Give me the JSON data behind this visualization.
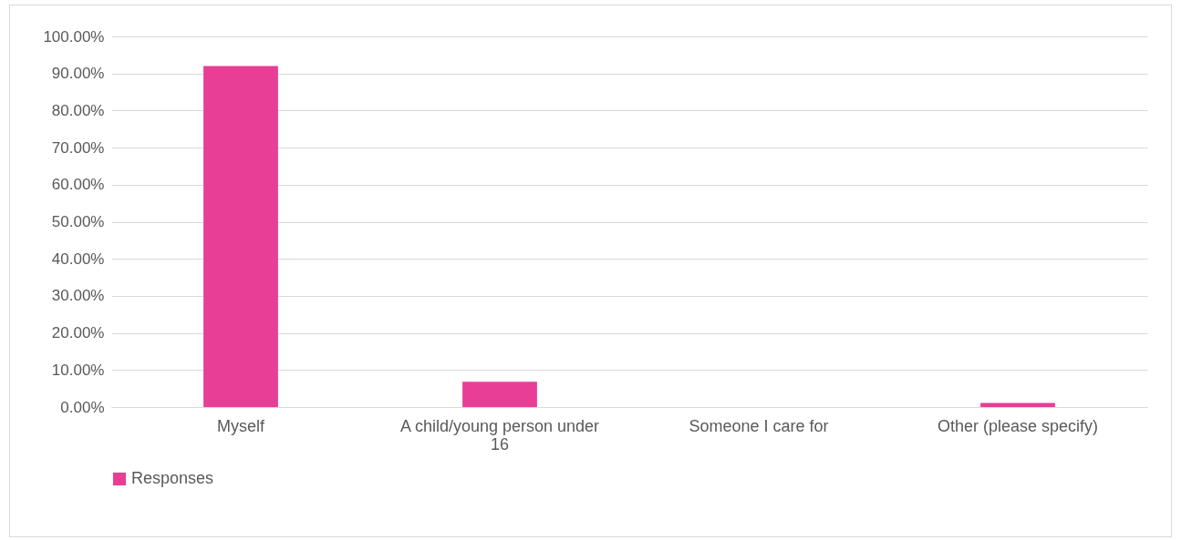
{
  "chart_data": {
    "type": "bar",
    "categories": [
      "Myself",
      "A child/young person under 16",
      "Someone I care for",
      "Other (please specify)"
    ],
    "series": [
      {
        "name": "Responses",
        "color": "#e83e96",
        "values": [
          92.0,
          6.8,
          0,
          1.1
        ]
      }
    ],
    "ylim": [
      0,
      100
    ],
    "yticks": [
      {
        "value": 0,
        "label": "0.00%"
      },
      {
        "value": 10,
        "label": "10.00%"
      },
      {
        "value": 20,
        "label": "20.00%"
      },
      {
        "value": 30,
        "label": "30.00%"
      },
      {
        "value": 40,
        "label": "40.00%"
      },
      {
        "value": 50,
        "label": "50.00%"
      },
      {
        "value": 60,
        "label": "60.00%"
      },
      {
        "value": 70,
        "label": "70.00%"
      },
      {
        "value": 80,
        "label": "80.00%"
      },
      {
        "value": 90,
        "label": "90.00%"
      },
      {
        "value": 100,
        "label": "100.00%"
      }
    ],
    "grid": "y",
    "legend": "bottom"
  }
}
